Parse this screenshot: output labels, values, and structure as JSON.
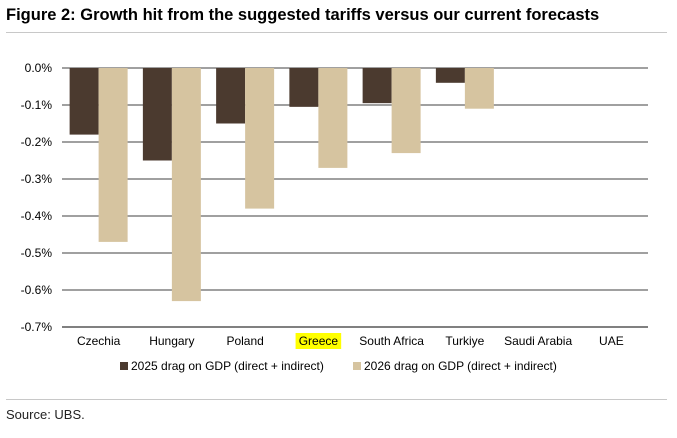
{
  "figure": {
    "title": "Figure 2: Growth hit from the suggested tariffs versus our current forecasts",
    "source": "Source: UBS."
  },
  "chart_data": {
    "type": "bar",
    "categories": [
      "Czechia",
      "Hungary",
      "Poland",
      "Greece",
      "South Africa",
      "Turkiye",
      "Saudi Arabia",
      "UAE"
    ],
    "highlighted_category": "Greece",
    "highlight_color": "#ffff00",
    "series": [
      {
        "name": "2025 drag on GDP (direct + indirect)",
        "color": "#4b3a2f",
        "values": [
          -0.18,
          -0.25,
          -0.15,
          -0.105,
          -0.095,
          -0.04,
          0,
          0
        ]
      },
      {
        "name": "2026 drag on GDP (direct + indirect)",
        "color": "#d6c4a0",
        "values": [
          -0.47,
          -0.63,
          -0.38,
          -0.27,
          -0.23,
          -0.11,
          0,
          0
        ]
      }
    ],
    "ylim": [
      -0.7,
      0.0
    ],
    "yticks": [
      0.0,
      -0.1,
      -0.2,
      -0.3,
      -0.4,
      -0.5,
      -0.6,
      -0.7
    ],
    "ytick_labels": [
      "0.0%",
      "-0.1%",
      "-0.2%",
      "-0.3%",
      "-0.4%",
      "-0.5%",
      "-0.6%",
      "-0.7%"
    ],
    "grid": true,
    "legend_position": "bottom",
    "xlabel": "",
    "ylabel": ""
  }
}
